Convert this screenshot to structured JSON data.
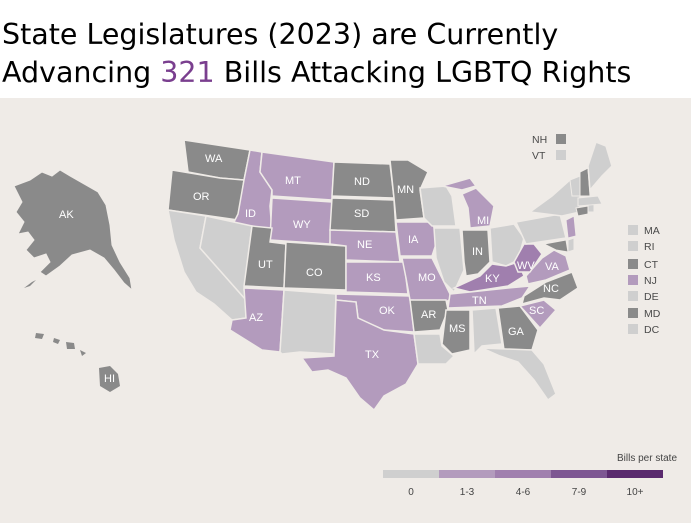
{
  "title": {
    "line1": "State Legislatures (2023) are Currently",
    "line2_pre": "Advancing ",
    "line2_highlight": "321",
    "line2_post": " Bills Attacking LGBTQ Rights"
  },
  "colors": {
    "bin0": "#cfcfcf",
    "bin1": "#b39bbd",
    "bin2": "#a07fae",
    "bin3": "#7d5692",
    "bin4": "#5a2a6e",
    "no_data": "#8a8a8a",
    "highlight": "#7a3f8f"
  },
  "legend": {
    "title": "Bills per state",
    "bins": [
      "0",
      "1-3",
      "4-6",
      "7-9",
      "10+"
    ]
  },
  "state_labels": {
    "WA": "WA",
    "OR": "OR",
    "ID": "ID",
    "MT": "MT",
    "WY": "WY",
    "ND": "ND",
    "SD": "SD",
    "NE": "NE",
    "MN": "MN",
    "IA": "IA",
    "MI": "MI",
    "IN": "IN",
    "UT": "UT",
    "CO": "CO",
    "KS": "KS",
    "MO": "MO",
    "KY": "KY",
    "WV": "WV",
    "VA": "VA",
    "NC": "NC",
    "TN": "TN",
    "OK": "OK",
    "AR": "AR",
    "SC": "SC",
    "AZ": "AZ",
    "MS": "MS",
    "GA": "GA",
    "TX": "TX",
    "AK": "AK",
    "HI": "HI"
  },
  "small_states": [
    {
      "abbr": "NH",
      "bin": "no_data"
    },
    {
      "abbr": "VT",
      "bin": "bin0"
    },
    {
      "abbr": "MA",
      "bin": "bin0"
    },
    {
      "abbr": "RI",
      "bin": "bin0"
    },
    {
      "abbr": "CT",
      "bin": "no_data"
    },
    {
      "abbr": "NJ",
      "bin": "bin1"
    },
    {
      "abbr": "DE",
      "bin": "bin0"
    },
    {
      "abbr": "MD",
      "bin": "no_data"
    },
    {
      "abbr": "DC",
      "bin": "bin0"
    }
  ]
}
